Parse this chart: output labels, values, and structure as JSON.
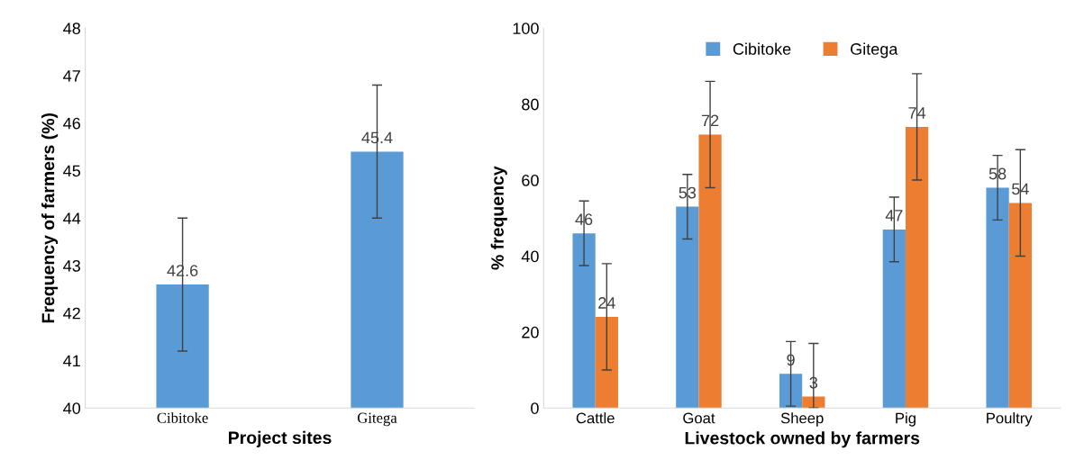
{
  "chart_data": [
    {
      "type": "bar",
      "categories": [
        "Cibitoke",
        "Gitega"
      ],
      "xlabel": "Project sites",
      "ylabel": "Frequency of farmers (%)",
      "ylim": [
        40,
        48
      ],
      "yticks": [
        40,
        41,
        42,
        43,
        44,
        45,
        46,
        47,
        48
      ],
      "data_labels": true,
      "legend": false,
      "series": [
        {
          "color": "#5b9bd5",
          "values": [
            42.6,
            45.4
          ],
          "errors": [
            [
              41.2,
              44.0
            ],
            [
              44.0,
              46.8
            ]
          ]
        }
      ]
    },
    {
      "type": "bar",
      "categories": [
        "Cattle",
        "Goat",
        "Sheep",
        "Pig",
        "Poultry"
      ],
      "xlabel": "Livestock owned by farmers",
      "ylabel": "% frequency",
      "ylim": [
        0,
        100
      ],
      "yticks": [
        0,
        20,
        40,
        60,
        80,
        100
      ],
      "data_labels": true,
      "legend": "top",
      "series": [
        {
          "name": "Cibitoke",
          "color": "#5b9bd5",
          "values": [
            46,
            53,
            9,
            47,
            58
          ],
          "errors": [
            [
              37.5,
              54.5
            ],
            [
              44.5,
              61.5
            ],
            [
              0.5,
              17.5
            ],
            [
              38.5,
              55.5
            ],
            [
              49.5,
              66.5
            ]
          ]
        },
        {
          "name": "Gitega",
          "color": "#ed7d31",
          "values": [
            24,
            72,
            3,
            74,
            54
          ],
          "errors": [
            [
              10,
              38
            ],
            [
              58,
              86
            ],
            [
              0,
              17
            ],
            [
              60,
              88
            ],
            [
              40,
              68
            ]
          ]
        }
      ]
    }
  ]
}
